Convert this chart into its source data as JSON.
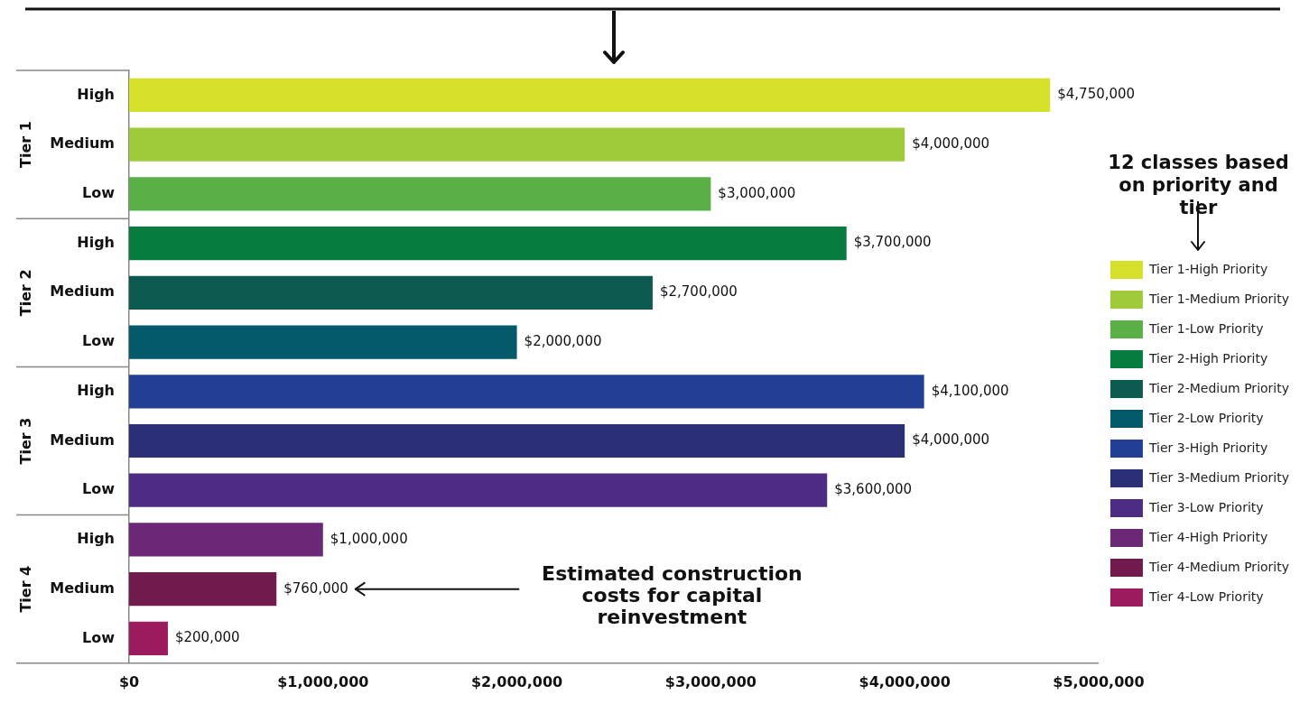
{
  "chart_data": {
    "type": "bar",
    "orientation": "horizontal",
    "categories": [
      "High",
      "Medium",
      "Low",
      "High",
      "Medium",
      "Low",
      "High",
      "Medium",
      "Low",
      "High",
      "Medium",
      "Low"
    ],
    "series": [
      {
        "name": "Tier 1-High Priority",
        "color": "#d4e02a",
        "values": [
          4750000,
          null,
          null,
          null,
          null,
          null,
          null,
          null,
          null,
          null,
          null,
          null
        ]
      },
      {
        "name": "Tier 1-Medium Priority",
        "color": "#9fcb3a",
        "values": [
          null,
          4000000,
          null,
          null,
          null,
          null,
          null,
          null,
          null,
          null,
          null,
          null
        ]
      },
      {
        "name": "Tier 1-Low Priority",
        "color": "#5aaf47",
        "values": [
          null,
          null,
          3000000,
          null,
          null,
          null,
          null,
          null,
          null,
          null,
          null,
          null
        ]
      },
      {
        "name": "Tier 2-High Priority",
        "color": "#087c3e",
        "values": [
          null,
          null,
          null,
          3700000,
          null,
          null,
          null,
          null,
          null,
          null,
          null,
          null
        ]
      },
      {
        "name": "Tier 2-Medium Priority",
        "color": "#0b5b50",
        "values": [
          null,
          null,
          null,
          null,
          2700000,
          null,
          null,
          null,
          null,
          null,
          null,
          null
        ]
      },
      {
        "name": "Tier 2-Low Priority",
        "color": "#045a6b",
        "values": [
          null,
          null,
          null,
          null,
          null,
          2000000,
          null,
          null,
          null,
          null,
          null,
          null
        ]
      },
      {
        "name": "Tier 3-High Priority",
        "color": "#233f95",
        "values": [
          null,
          null,
          null,
          null,
          null,
          null,
          4100000,
          null,
          null,
          null,
          null,
          null
        ]
      },
      {
        "name": "Tier 3-Medium Priority",
        "color": "#2b2f78",
        "values": [
          null,
          null,
          null,
          null,
          null,
          null,
          null,
          4000000,
          null,
          null,
          null,
          null
        ]
      },
      {
        "name": "Tier 3-Low Priority",
        "color": "#4d2c84",
        "values": [
          null,
          null,
          null,
          null,
          null,
          null,
          null,
          null,
          3600000,
          null,
          null,
          null
        ]
      },
      {
        "name": "Tier 4-High Priority",
        "color": "#6a2877",
        "values": [
          null,
          null,
          null,
          null,
          null,
          null,
          null,
          null,
          null,
          1000000,
          null,
          null
        ]
      },
      {
        "name": "Tier 4-Medium Priority",
        "color": "#711a4e",
        "values": [
          null,
          null,
          null,
          null,
          null,
          null,
          null,
          null,
          null,
          null,
          760000,
          null
        ]
      },
      {
        "name": "Tier 4-Low Priority",
        "color": "#9b1b5e",
        "values": [
          null,
          null,
          null,
          null,
          null,
          null,
          null,
          null,
          null,
          null,
          null,
          200000
        ]
      }
    ],
    "value_labels": [
      "$4,750,000",
      "$4,000,000",
      "$3,000,000",
      "$3,700,000",
      "$2,700,000",
      "$2,000,000",
      "$4,100,000",
      "$4,000,000",
      "$3,600,000",
      "$1,000,000",
      "$760,000",
      "$200,000"
    ],
    "xlim": [
      0,
      5000000
    ],
    "xticks": [
      {
        "value": 0,
        "label": "$0"
      },
      {
        "value": 1000000,
        "label": "$1,000,000"
      },
      {
        "value": 2000000,
        "label": "$2,000,000"
      },
      {
        "value": 3000000,
        "label": "$3,000,000"
      },
      {
        "value": 4000000,
        "label": "$4,000,000"
      },
      {
        "value": 5000000,
        "label": "$5,000,000"
      }
    ],
    "legend": "right",
    "legend_title": "12 classes based on priority and tier",
    "annotations": [
      "Tier 1",
      "Tier 2",
      "Tier 3",
      "Tier 4",
      "Estimated construction costs for capital reinvestment"
    ],
    "grid": false
  }
}
